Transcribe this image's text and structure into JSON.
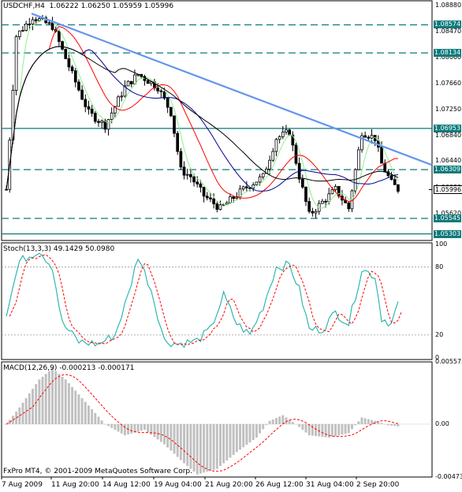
{
  "header": {
    "symbol": "USDCHF,H4",
    "open": "1.06222",
    "high": "1.06250",
    "low": "1.05959",
    "close": "1.05996"
  },
  "stoch_label": "Stoch(13,3,3) 49.1429 50.0980",
  "macd_label": "MACD(12,26,9) -0.000213 -0.000171",
  "copyright": "FxPro MT4, © 2001-2009 MetaQuotes Software Corp.",
  "colors": {
    "teal_line": "#0d7a7a",
    "trend_line": "#6495ed",
    "candle": "#000000",
    "ma_red": "#ff0000",
    "ma_blue": "#00008b",
    "ma_black": "#000000",
    "ma_green": "#90ee90",
    "stoch_main": "#20b2aa",
    "stoch_signal": "#ff0000",
    "macd_hist": "#c0c0c0",
    "macd_signal": "#ff0000"
  },
  "chart_data": [
    {
      "type": "candlestick",
      "price_axis": [
        "1.08880",
        "1.08470",
        "1.08060",
        "1.07660",
        "1.07250",
        "1.06840",
        "1.06440",
        "1.06030",
        "1.05620"
      ],
      "levels": [
        {
          "label": "1.08574",
          "value": 1.08574,
          "style": "dashed"
        },
        {
          "label": "1.08134",
          "value": 1.08134,
          "style": "dashed"
        },
        {
          "label": "1.06953",
          "value": 1.06953,
          "style": "solid"
        },
        {
          "label": "1.06309",
          "value": 1.06309,
          "style": "dashed"
        },
        {
          "label": "1.05545",
          "value": 1.05545,
          "style": "dashed"
        },
        {
          "label": "1.05303",
          "value": 1.05303,
          "style": "solid"
        }
      ],
      "current_price": {
        "label": "1.05996",
        "value": 1.05996
      },
      "trendline": [
        [
          1.0875,
          0
        ],
        [
          1.0638,
          1
        ]
      ],
      "x_dates": [
        "7 Aug 2009",
        "11 Aug 20:00",
        "14 Aug 12:00",
        "19 Aug 04:00",
        "21 Aug 20:00",
        "26 Aug 12:00",
        "31 Aug 04:00",
        "2 Sep 20:00"
      ]
    },
    {
      "type": "line",
      "name": "Stoch",
      "y_axis": [
        "100",
        "80",
        "20",
        "0"
      ],
      "levels": [
        20,
        80
      ]
    },
    {
      "type": "bar",
      "name": "MACD",
      "y_axis": [
        "0.005573",
        "0.00",
        "-0.00473"
      ]
    }
  ]
}
